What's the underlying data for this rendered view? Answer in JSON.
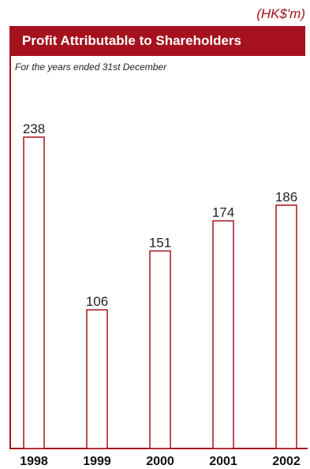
{
  "chart_data": {
    "type": "bar",
    "unit_label": "(HK$'m)",
    "title": "Profit Attributable to Shareholders",
    "subtitle": "For the years ended 31st December",
    "categories": [
      "1998",
      "1999",
      "2000",
      "2001",
      "2002"
    ],
    "values": [
      238,
      106,
      151,
      174,
      186
    ],
    "bar_color": "#a5121d",
    "bar_fill": "#ffffff",
    "grid": false,
    "legend": "none"
  }
}
